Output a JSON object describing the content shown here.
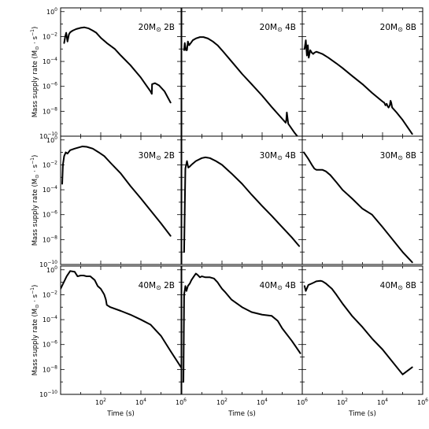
{
  "figure": {
    "ylabel_main": "Mass supply rate (M",
    "ylabel_unit": " · s",
    "ylabel_close": ")",
    "xlabel": "Time (s)",
    "sun_symbol": "⊙",
    "minus_one": "−1"
  },
  "chart_data": {
    "type": "line",
    "grid": false,
    "xscale": "log",
    "yscale": "log",
    "xlim": [
      1,
      1000000
    ],
    "ylim": [
      1e-10,
      2
    ],
    "xtick_labels": [
      {
        "base": "10",
        "exp": "2",
        "value": 100
      },
      {
        "base": "10",
        "exp": "4",
        "value": 10000
      },
      {
        "base": "10",
        "exp": "6",
        "value": 1000000
      }
    ],
    "ytick_labels": [
      {
        "base": "10",
        "exp": "0",
        "value": 1
      },
      {
        "base": "10",
        "exp": "−2",
        "value": 0.01
      },
      {
        "base": "10",
        "exp": "−4",
        "value": 0.0001
      },
      {
        "base": "10",
        "exp": "−6",
        "value": 1e-06
      },
      {
        "base": "10",
        "exp": "−8",
        "value": 1e-08
      },
      {
        "base": "10",
        "exp": "−10",
        "value": 1e-10
      }
    ],
    "panels": [
      {
        "mass": "20M",
        "label": "2B",
        "series": [
          {
            "x": [
              1.5,
              1.7,
              1.9,
              2.2,
              2.6,
              3,
              4,
              6,
              10,
              15,
              25,
              40,
              60,
              100,
              200,
              500,
              1000,
              3000,
              10000,
              20000,
              30000,
              35000,
              36000,
              50000,
              80000,
              150000,
              300000
            ],
            "y": [
              0.003,
              0.01,
              0.02,
              0.004,
              0.015,
              0.022,
              0.03,
              0.04,
              0.05,
              0.055,
              0.045,
              0.03,
              0.02,
              0.008,
              0.003,
              0.001,
              0.0003,
              5e-05,
              5e-06,
              1e-06,
              4e-07,
              2.5e-07,
              1.5e-06,
              1.8e-06,
              1.2e-06,
              4e-07,
              5e-08
            ]
          }
        ]
      },
      {
        "mass": "20M",
        "label": "4B",
        "series": [
          {
            "x": [
              1.3,
              1.4,
              1.6,
              1.8,
              2,
              2.3,
              2.8,
              3.5,
              5,
              8,
              12,
              20,
              35,
              60,
              100,
              300,
              1000,
              3000,
              10000,
              30000,
              100000,
              150000,
              160000,
              170000,
              200000,
              400000,
              800000
            ],
            "y": [
              0.0008,
              0.003,
              0.0008,
              0.0008,
              0.004,
              0.002,
              0.003,
              0.005,
              0.007,
              0.009,
              0.009,
              0.007,
              0.004,
              0.002,
              0.0008,
              0.0001,
              1e-05,
              1.5e-06,
              1.8e-07,
              2.2e-08,
              2.5e-09,
              1.2e-09,
              2e-09,
              8e-09,
              1e-09,
              2e-10,
              5e-11
            ]
          }
        ]
      },
      {
        "mass": "20M",
        "label": "8B",
        "series": [
          {
            "x": [
              1.3,
              1.5,
              1.7,
              1.9,
              2.1,
              2.5,
              3,
              3.5,
              4,
              5,
              7,
              10,
              20,
              50,
              100,
              300,
              1000,
              3000,
              10000,
              12000,
              14000,
              16000,
              18000,
              20000,
              23000,
              25000,
              27000,
              30000,
              50000,
              100000,
              300000
            ],
            "y": [
              0.001,
              0.005,
              0.0003,
              0.002,
              0.0002,
              0.0008,
              0.0005,
              0.0004,
              0.0005,
              0.0006,
              0.0005,
              0.0004,
              0.0002,
              7e-05,
              3e-05,
              7e-06,
              1.5e-06,
              3e-07,
              6e-08,
              5e-08,
              3e-08,
              4e-08,
              2.5e-08,
              2e-08,
              3e-08,
              7e-08,
              5e-08,
              2e-08,
              8e-09,
              2e-09,
              1.5e-10
            ]
          }
        ]
      },
      {
        "mass": "30M",
        "label": "2B",
        "series": [
          {
            "x": [
              1.2,
              1.3,
              1.5,
              1.8,
              2.2,
              3,
              5,
              8,
              12,
              20,
              40,
              80,
              150,
              300,
              1000,
              3000,
              10000,
              100000,
              300000
            ],
            "y": [
              0.0003,
              0.01,
              0.05,
              0.1,
              0.08,
              0.15,
              0.2,
              0.25,
              0.3,
              0.28,
              0.2,
              0.1,
              0.05,
              0.015,
              0.002,
              0.0002,
              2e-05,
              2e-07,
              2e-08
            ]
          }
        ]
      },
      {
        "mass": "30M",
        "label": "4B",
        "series": [
          {
            "x": [
              1.3,
              1.5,
              1.8,
              2.1,
              2.4,
              3,
              5,
              10,
              15,
              25,
              50,
              100,
              300,
              1000,
              3000,
              10000,
              30000,
              100000,
              300000,
              700000
            ],
            "y": [
              1e-09,
              0.005,
              0.02,
              0.006,
              0.007,
              0.01,
              0.02,
              0.035,
              0.04,
              0.035,
              0.02,
              0.01,
              0.002,
              0.0003,
              4e-05,
              5e-06,
              8e-07,
              1e-07,
              1.5e-08,
              3e-09
            ]
          }
        ]
      },
      {
        "mass": "30M",
        "label": "8B",
        "series": [
          {
            "x": [
              1.2,
              2,
              3,
              4,
              5,
              7,
              10,
              15,
              25,
              50,
              100,
              300,
              1000,
              3000,
              10000,
              100000,
              300000
            ],
            "y": [
              0.1,
              0.03,
              0.01,
              0.005,
              0.004,
              0.004,
              0.004,
              0.003,
              0.0015,
              0.0004,
              0.0001,
              2e-05,
              3e-06,
              1e-06,
              1e-07,
              1e-09,
              1.5e-10
            ]
          }
        ]
      },
      {
        "mass": "40M",
        "label": "2B",
        "series": [
          {
            "x": [
              1,
              2,
              3,
              5,
              7,
              10,
              14,
              20,
              30,
              50,
              70,
              100,
              130,
              150,
              180,
              200,
              300,
              1000,
              3000,
              10000,
              30000,
              100000,
              300000,
              1000000
            ],
            "y": [
              0.03,
              0.3,
              0.8,
              0.7,
              0.3,
              0.35,
              0.35,
              0.3,
              0.3,
              0.15,
              0.05,
              0.03,
              0.015,
              0.01,
              0.004,
              0.0015,
              0.001,
              0.0005,
              0.00025,
              0.0001,
              4e-05,
              5e-06,
              3e-07,
              1.5e-08
            ]
          }
        ]
      },
      {
        "mass": "40M",
        "label": "4B",
        "series": [
          {
            "x": [
              1.2,
              1.3,
              1.5,
              1.7,
              2,
              2.5,
              3,
              4,
              5,
              6,
              8,
              10,
              15,
              25,
              40,
              60,
              80,
              100,
              150,
              300,
              1000,
              3000,
              10000,
              30000,
              60000,
              100000,
              300000,
              800000
            ],
            "y": [
              1e-09,
              0.01,
              0.05,
              0.02,
              0.05,
              0.08,
              0.15,
              0.3,
              0.5,
              0.4,
              0.25,
              0.3,
              0.25,
              0.25,
              0.2,
              0.1,
              0.05,
              0.03,
              0.015,
              0.004,
              0.001,
              0.0004,
              0.00025,
              0.0002,
              8e-05,
              2e-05,
              2e-06,
              2e-07
            ]
          }
        ]
      },
      {
        "mass": "40M",
        "label": "8B",
        "series": [
          {
            "x": [
              1.3,
              1.5,
              2,
              3,
              4,
              5,
              8,
              10,
              15,
              30,
              50,
              100,
              300,
              1000,
              3000,
              10000,
              100000,
              300000
            ],
            "y": [
              0.05,
              0.02,
              0.06,
              0.08,
              0.1,
              0.12,
              0.13,
              0.12,
              0.08,
              0.03,
              0.01,
              0.002,
              0.0002,
              2.5e-05,
              3e-06,
              4e-07,
              4e-09,
              1.5e-08
            ]
          }
        ]
      }
    ]
  }
}
